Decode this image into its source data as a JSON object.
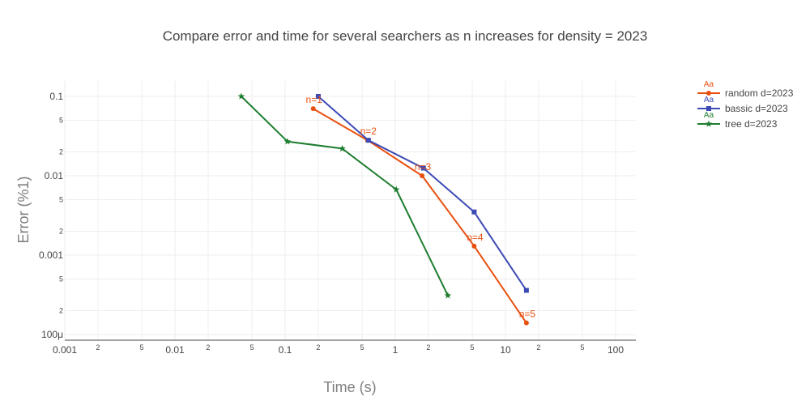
{
  "chart_data": {
    "type": "line",
    "title": "Compare error and time for several searchers as n increases for density = 2023",
    "xlabel": "Time (s)",
    "ylabel": "Error (%1)",
    "x_scale": "log",
    "y_scale": "log",
    "xlim": [
      0.001,
      150
    ],
    "ylim": [
      0.0001,
      0.15
    ],
    "x_major_ticks": [
      {
        "value": 0.001,
        "label": "0.001"
      },
      {
        "value": 0.01,
        "label": "0.01"
      },
      {
        "value": 0.1,
        "label": "0.1"
      },
      {
        "value": 1,
        "label": "1"
      },
      {
        "value": 10,
        "label": "10"
      },
      {
        "value": 100,
        "label": "100"
      }
    ],
    "x_minor_ticks": [
      {
        "value": 0.002,
        "label": "2"
      },
      {
        "value": 0.005,
        "label": "5"
      },
      {
        "value": 0.02,
        "label": "2"
      },
      {
        "value": 0.05,
        "label": "5"
      },
      {
        "value": 0.2,
        "label": "2"
      },
      {
        "value": 0.5,
        "label": "5"
      },
      {
        "value": 2,
        "label": "2"
      },
      {
        "value": 5,
        "label": "5"
      },
      {
        "value": 20,
        "label": "2"
      },
      {
        "value": 50,
        "label": "5"
      }
    ],
    "y_major_ticks": [
      {
        "value": 0.1,
        "label": "0.1"
      },
      {
        "value": 0.01,
        "label": "0.01"
      },
      {
        "value": 0.001,
        "label": "0.001"
      },
      {
        "value": 0.0001,
        "label": "100μ"
      }
    ],
    "y_minor_ticks": [
      {
        "value": 0.05,
        "label": "5"
      },
      {
        "value": 0.02,
        "label": "2"
      },
      {
        "value": 0.005,
        "label": "5"
      },
      {
        "value": 0.002,
        "label": "2"
      },
      {
        "value": 0.0005,
        "label": "5"
      },
      {
        "value": 0.0002,
        "label": "2"
      }
    ],
    "grid": true,
    "legend_position": "top-right",
    "legend_marker_text": "Aa",
    "series": [
      {
        "name": "random d=2023",
        "color": "#e8500f",
        "marker": "circle",
        "points": [
          {
            "x": 0.18,
            "y": 0.07
          },
          {
            "x": 0.56,
            "y": 0.028
          },
          {
            "x": 1.75,
            "y": 0.01
          },
          {
            "x": 5.2,
            "y": 0.0013
          },
          {
            "x": 15.5,
            "y": 0.00014
          }
        ]
      },
      {
        "name": "bassic d=2023",
        "color": "#3c4ab5",
        "marker": "square",
        "points": [
          {
            "x": 0.2,
            "y": 0.1
          },
          {
            "x": 0.57,
            "y": 0.028
          },
          {
            "x": 1.8,
            "y": 0.0125
          },
          {
            "x": 5.2,
            "y": 0.0035
          },
          {
            "x": 15.5,
            "y": 0.00036
          }
        ]
      },
      {
        "name": "tree d=2023",
        "color": "#1d7d2f",
        "marker": "star",
        "points": [
          {
            "x": 0.04,
            "y": 0.1
          },
          {
            "x": 0.105,
            "y": 0.027
          },
          {
            "x": 0.33,
            "y": 0.022
          },
          {
            "x": 1.02,
            "y": 0.0067
          },
          {
            "x": 3.0,
            "y": 0.00031
          }
        ]
      }
    ],
    "annotations": [
      {
        "text": "n=1",
        "x": 0.18,
        "y": 0.07,
        "color": "#e8500f"
      },
      {
        "text": "n=2",
        "x": 0.56,
        "y": 0.028,
        "color": "#e8500f"
      },
      {
        "text": "n=3",
        "x": 1.75,
        "y": 0.01,
        "color": "#e8500f"
      },
      {
        "text": "n=4",
        "x": 5.2,
        "y": 0.0013,
        "color": "#e8500f"
      },
      {
        "text": "n=5",
        "x": 15.5,
        "y": 0.00014,
        "color": "#e8500f"
      }
    ]
  }
}
